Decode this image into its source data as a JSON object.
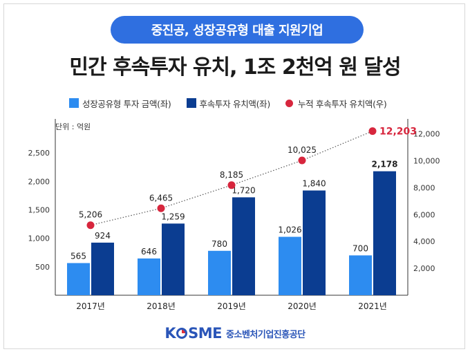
{
  "header": {
    "badge": "중진공, 성장공유형 대출 지원기업",
    "title": "민간 후속투자 유치, 1조 2천억 원 달성"
  },
  "legend": [
    {
      "label": "성장공유형 투자 금액(좌)",
      "color": "#2d8cf0",
      "kind": "bar"
    },
    {
      "label": "후속투자 유치액(좌)",
      "color": "#0b3d91",
      "kind": "bar"
    },
    {
      "label": "누적 후속투자 유치액(우)",
      "color": "#d7263d",
      "kind": "dot"
    }
  ],
  "unit_label": "단위 : 억원",
  "footer": {
    "logo_letters": [
      "K",
      "S",
      "M",
      "E"
    ],
    "org_name": "중소벤처기업진흥공단"
  },
  "colors": {
    "accent": "#2f6fe0",
    "bar_light": "#2d8cf0",
    "bar_dark": "#0b3d91",
    "cumulative": "#d7263d"
  },
  "chart_data": {
    "type": "bar",
    "categories": [
      "2017년",
      "2018년",
      "2019년",
      "2020년",
      "2021년"
    ],
    "series": [
      {
        "name": "성장공유형 투자 금액(좌)",
        "axis": "left",
        "values": [
          565,
          646,
          780,
          1026,
          700
        ]
      },
      {
        "name": "후속투자 유치액(좌)",
        "axis": "left",
        "values": [
          924,
          1259,
          1720,
          1840,
          2178
        ]
      },
      {
        "name": "누적 후속투자 유치액(우)",
        "axis": "right",
        "type": "line",
        "values": [
          5206,
          6465,
          8185,
          10025,
          12203
        ]
      }
    ],
    "value_labels": {
      "bar_light": [
        "565",
        "646",
        "780",
        "1,026",
        "700"
      ],
      "bar_dark": [
        "924",
        "1,259",
        "1,720",
        "1,840",
        "2,178"
      ],
      "line": [
        "5,206",
        "6,465",
        "8,185",
        "10,025",
        "12,203"
      ]
    },
    "left_axis": {
      "ticks": [
        500,
        1000,
        1500,
        2000,
        2500
      ],
      "tick_labels": [
        "500",
        "1,000",
        "1,500",
        "2,000",
        "2,500"
      ],
      "ylim": [
        0,
        3000
      ]
    },
    "right_axis": {
      "ticks": [
        2000,
        4000,
        6000,
        8000,
        10000,
        12000
      ],
      "tick_labels": [
        "2,000",
        "4,000",
        "6,000",
        "8,000",
        "10,000",
        "12,000"
      ],
      "ylim": [
        0,
        12700
      ]
    },
    "grid": false,
    "legend_position": "top"
  }
}
